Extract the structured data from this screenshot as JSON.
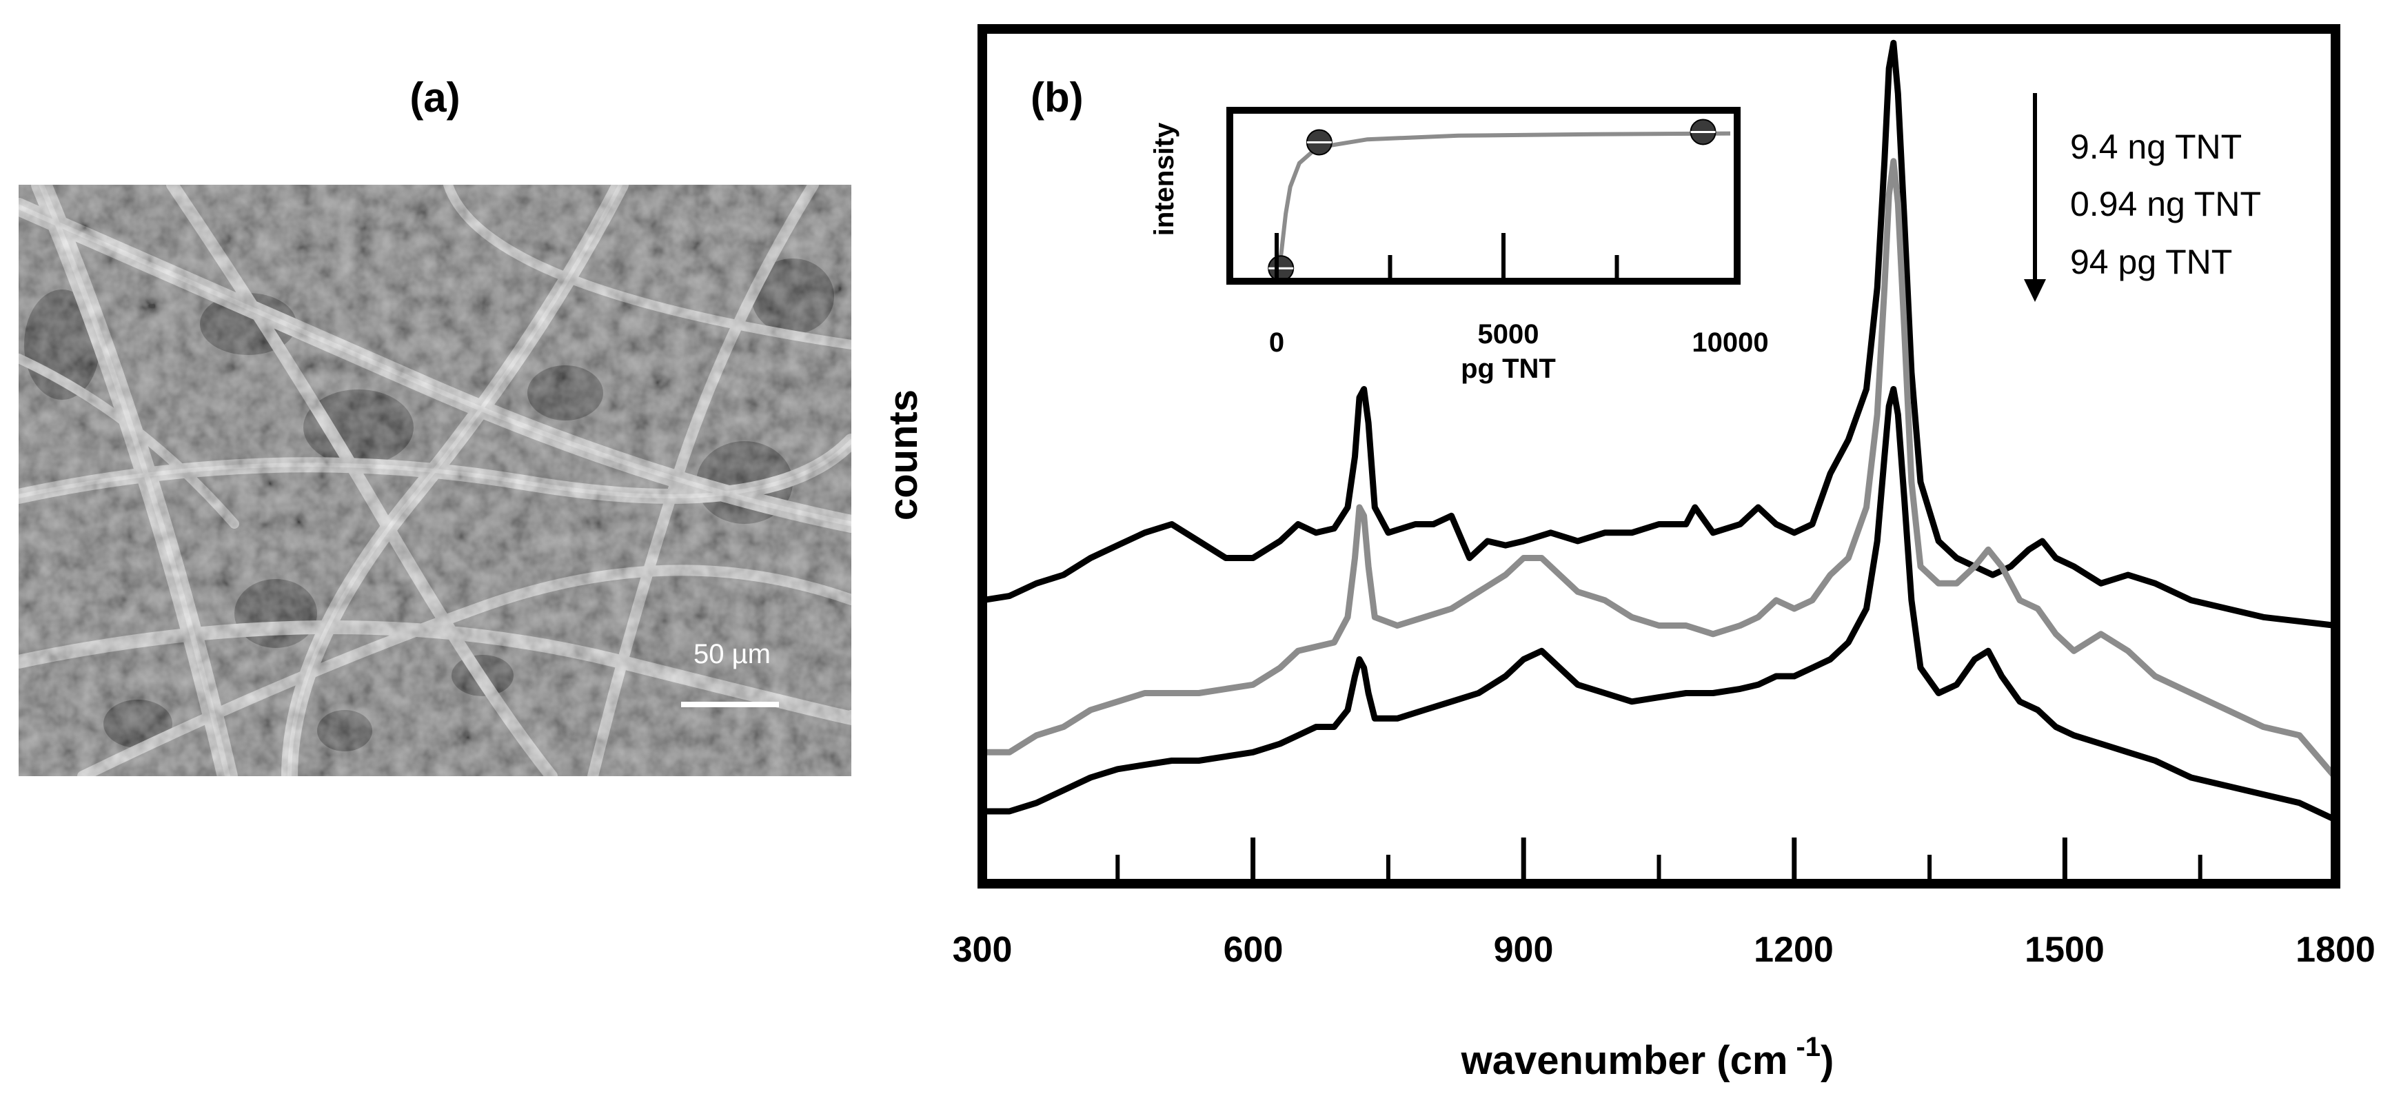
{
  "panel_a": {
    "label": "(a)",
    "scale_bar_label": "50 µm"
  },
  "colors": {
    "black_series": "#000000",
    "gray_series": "#8c8c8c",
    "sem_background": "#7c7c7c",
    "sem_fiber": "#d2d2d2"
  },
  "chart_data": [
    {
      "id": "main",
      "type": "line",
      "panel_label": "(b)",
      "xlabel": "wavenumber (cm",
      "xlabel_superscript": "-1",
      "xlabel_close": ")",
      "ylabel": "counts",
      "xlim": [
        300,
        1800
      ],
      "ylim": [
        0,
        100
      ],
      "xticks": [
        300,
        600,
        900,
        1200,
        1500,
        1800
      ],
      "minor_xticks": [
        450,
        750,
        1050,
        1350,
        1650
      ],
      "grid": false,
      "legend_placement": "top-right",
      "annotation_arrow": "down",
      "legend": [
        "9.4 ng TNT",
        "0.94 ng TNT",
        "94 pg TNT"
      ],
      "series": [
        {
          "name": "9.4 ng TNT",
          "color": "#000000",
          "points": [
            [
              300,
              33
            ],
            [
              330,
              33.5
            ],
            [
              360,
              35
            ],
            [
              390,
              36
            ],
            [
              420,
              38
            ],
            [
              450,
              39.5
            ],
            [
              480,
              41
            ],
            [
              510,
              42
            ],
            [
              540,
              40
            ],
            [
              570,
              38
            ],
            [
              600,
              38
            ],
            [
              630,
              40
            ],
            [
              650,
              42
            ],
            [
              670,
              41
            ],
            [
              690,
              41.5
            ],
            [
              705,
              44
            ],
            [
              713,
              50
            ],
            [
              718,
              57
            ],
            [
              723,
              58
            ],
            [
              728,
              54
            ],
            [
              735,
              44
            ],
            [
              750,
              41
            ],
            [
              780,
              42
            ],
            [
              800,
              42
            ],
            [
              820,
              43
            ],
            [
              840,
              38
            ],
            [
              860,
              40
            ],
            [
              880,
              39.5
            ],
            [
              900,
              40
            ],
            [
              930,
              41
            ],
            [
              960,
              40
            ],
            [
              990,
              41
            ],
            [
              1020,
              41
            ],
            [
              1050,
              42
            ],
            [
              1080,
              42
            ],
            [
              1090,
              44
            ],
            [
              1110,
              41
            ],
            [
              1140,
              42
            ],
            [
              1160,
              44
            ],
            [
              1180,
              42
            ],
            [
              1200,
              41
            ],
            [
              1220,
              42
            ],
            [
              1240,
              48
            ],
            [
              1260,
              52
            ],
            [
              1280,
              58
            ],
            [
              1292,
              70
            ],
            [
              1300,
              85
            ],
            [
              1305,
              96
            ],
            [
              1310,
              99
            ],
            [
              1315,
              93
            ],
            [
              1322,
              78
            ],
            [
              1330,
              60
            ],
            [
              1340,
              47
            ],
            [
              1360,
              40
            ],
            [
              1380,
              38
            ],
            [
              1400,
              37
            ],
            [
              1420,
              36
            ],
            [
              1440,
              37
            ],
            [
              1460,
              39
            ],
            [
              1475,
              40
            ],
            [
              1490,
              38
            ],
            [
              1510,
              37
            ],
            [
              1540,
              35
            ],
            [
              1570,
              36
            ],
            [
              1600,
              35
            ],
            [
              1640,
              33
            ],
            [
              1680,
              32
            ],
            [
              1720,
              31
            ],
            [
              1760,
              30.5
            ],
            [
              1800,
              30
            ]
          ]
        },
        {
          "name": "0.94 ng TNT",
          "color": "#8c8c8c",
          "points": [
            [
              300,
              15
            ],
            [
              330,
              15
            ],
            [
              360,
              17
            ],
            [
              390,
              18
            ],
            [
              420,
              20
            ],
            [
              450,
              21
            ],
            [
              480,
              22
            ],
            [
              510,
              22
            ],
            [
              540,
              22
            ],
            [
              570,
              22.5
            ],
            [
              600,
              23
            ],
            [
              630,
              25
            ],
            [
              650,
              27
            ],
            [
              670,
              27.5
            ],
            [
              690,
              28
            ],
            [
              705,
              31
            ],
            [
              713,
              38
            ],
            [
              718,
              44
            ],
            [
              723,
              43
            ],
            [
              728,
              37
            ],
            [
              735,
              31
            ],
            [
              760,
              30
            ],
            [
              790,
              31
            ],
            [
              820,
              32
            ],
            [
              850,
              34
            ],
            [
              880,
              36
            ],
            [
              900,
              38
            ],
            [
              920,
              38
            ],
            [
              940,
              36
            ],
            [
              960,
              34
            ],
            [
              990,
              33
            ],
            [
              1020,
              31
            ],
            [
              1050,
              30
            ],
            [
              1080,
              30
            ],
            [
              1110,
              29
            ],
            [
              1140,
              30
            ],
            [
              1160,
              31
            ],
            [
              1180,
              33
            ],
            [
              1200,
              32
            ],
            [
              1220,
              33
            ],
            [
              1240,
              36
            ],
            [
              1260,
              38
            ],
            [
              1280,
              44
            ],
            [
              1292,
              55
            ],
            [
              1300,
              70
            ],
            [
              1305,
              81
            ],
            [
              1310,
              85
            ],
            [
              1315,
              80
            ],
            [
              1322,
              65
            ],
            [
              1330,
              47
            ],
            [
              1340,
              37
            ],
            [
              1360,
              35
            ],
            [
              1380,
              35
            ],
            [
              1400,
              37
            ],
            [
              1415,
              39
            ],
            [
              1430,
              37
            ],
            [
              1450,
              33
            ],
            [
              1470,
              32
            ],
            [
              1490,
              29
            ],
            [
              1510,
              27
            ],
            [
              1540,
              29
            ],
            [
              1570,
              27
            ],
            [
              1600,
              24
            ],
            [
              1640,
              22
            ],
            [
              1680,
              20
            ],
            [
              1720,
              18
            ],
            [
              1760,
              17
            ],
            [
              1800,
              12
            ]
          ]
        },
        {
          "name": "94 pg TNT",
          "color": "#000000",
          "points": [
            [
              300,
              8
            ],
            [
              330,
              8
            ],
            [
              360,
              9
            ],
            [
              390,
              10.5
            ],
            [
              420,
              12
            ],
            [
              450,
              13
            ],
            [
              480,
              13.5
            ],
            [
              510,
              14
            ],
            [
              540,
              14
            ],
            [
              570,
              14.5
            ],
            [
              600,
              15
            ],
            [
              630,
              16
            ],
            [
              650,
              17
            ],
            [
              670,
              18
            ],
            [
              690,
              18
            ],
            [
              705,
              20
            ],
            [
              713,
              24
            ],
            [
              718,
              26
            ],
            [
              723,
              25
            ],
            [
              728,
              22
            ],
            [
              735,
              19
            ],
            [
              760,
              19
            ],
            [
              790,
              20
            ],
            [
              820,
              21
            ],
            [
              850,
              22
            ],
            [
              880,
              24
            ],
            [
              900,
              26
            ],
            [
              920,
              27
            ],
            [
              940,
              25
            ],
            [
              960,
              23
            ],
            [
              990,
              22
            ],
            [
              1020,
              21
            ],
            [
              1050,
              21.5
            ],
            [
              1080,
              22
            ],
            [
              1110,
              22
            ],
            [
              1140,
              22.5
            ],
            [
              1160,
              23
            ],
            [
              1180,
              24
            ],
            [
              1200,
              24
            ],
            [
              1220,
              25
            ],
            [
              1240,
              26
            ],
            [
              1260,
              28
            ],
            [
              1280,
              32
            ],
            [
              1292,
              40
            ],
            [
              1300,
              50
            ],
            [
              1305,
              56
            ],
            [
              1310,
              58
            ],
            [
              1315,
              55
            ],
            [
              1322,
              45
            ],
            [
              1330,
              33
            ],
            [
              1340,
              25
            ],
            [
              1360,
              22
            ],
            [
              1380,
              23
            ],
            [
              1400,
              26
            ],
            [
              1415,
              27
            ],
            [
              1430,
              24
            ],
            [
              1450,
              21
            ],
            [
              1470,
              20
            ],
            [
              1490,
              18
            ],
            [
              1510,
              17
            ],
            [
              1540,
              16
            ],
            [
              1570,
              15
            ],
            [
              1600,
              14
            ],
            [
              1640,
              12
            ],
            [
              1680,
              11
            ],
            [
              1720,
              10
            ],
            [
              1760,
              9
            ],
            [
              1800,
              7
            ]
          ]
        }
      ]
    },
    {
      "id": "inset",
      "type": "scatter",
      "xlabel": "pg TNT",
      "ylabel": "intensity",
      "xlim": [
        0,
        10000
      ],
      "ylim": [
        0,
        1
      ],
      "xtick_labels": [
        "0",
        "5000",
        "10000"
      ],
      "xticks": [
        0,
        5000,
        10000
      ],
      "minor_xticks": [
        2500,
        7500
      ],
      "points": [
        [
          94,
          0.05
        ],
        [
          940,
          0.9
        ],
        [
          9400,
          0.97
        ]
      ],
      "fit_curve": [
        [
          0,
          0.02
        ],
        [
          100,
          0.15
        ],
        [
          200,
          0.42
        ],
        [
          300,
          0.6
        ],
        [
          500,
          0.76
        ],
        [
          800,
          0.84
        ],
        [
          1200,
          0.88
        ],
        [
          2000,
          0.92
        ],
        [
          4000,
          0.945
        ],
        [
          7000,
          0.955
        ],
        [
          10000,
          0.96
        ]
      ]
    }
  ]
}
